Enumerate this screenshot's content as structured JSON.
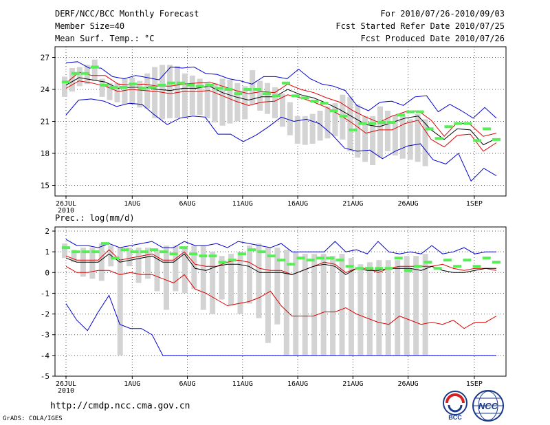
{
  "header": {
    "title": "DERF/NCC/BCC Monthly Forecast",
    "member_size": "Member Size=40",
    "variable": "Mean Surf. Temp.: °C",
    "period": "For 2010/07/26-2010/09/03",
    "started": "Fcst Started Refer Date 2010/07/25",
    "produced": "Fcst Produced Date 2010/07/26"
  },
  "footer": {
    "url": "http://cmdp.ncc.cma.gov.cn",
    "grads": "GrADS: COLA/IGES",
    "logo_bcc": "BCC",
    "logo_ncc": "NCC"
  },
  "colors": {
    "box": "#d3d3d3",
    "mean": "#55ee55",
    "median": "#000000",
    "inner": "#dd0000",
    "outer": "#0000cc",
    "grid": "#555555"
  },
  "chart_data": [
    {
      "type": "box-plume",
      "ylabel": "Mean Surf. Temp.: °C",
      "xlabel_year": "2010",
      "x_ticks": [
        "26JUL",
        "1AUG",
        "6AUG",
        "11AUG",
        "16AUG",
        "21AUG",
        "26AUG",
        "1SEP"
      ],
      "x_tick_days": [
        0,
        6,
        11,
        16,
        21,
        26,
        31,
        37
      ],
      "ylim": [
        14,
        28
      ],
      "y_ticks": [
        15,
        18,
        21,
        24,
        27
      ],
      "days": 40,
      "box_low": [
        23.3,
        23.8,
        24.3,
        24.5,
        24.8,
        23.3,
        23.0,
        22.8,
        22.6,
        22.6,
        22.3,
        22.2,
        21.3,
        21.2,
        21.3,
        21.3,
        21.3,
        21.6,
        21.6,
        21.3,
        20.9,
        20.6,
        20.8,
        21.0,
        21.2,
        22.6,
        22.0,
        21.7,
        21.3,
        20.5,
        19.7,
        18.9,
        18.8,
        18.9,
        19.2,
        19.4,
        19.6,
        19.3,
        18.2,
        17.6,
        17.2,
        16.9,
        17.6,
        18.2,
        17.8,
        17.5,
        17.4,
        17.2,
        16.8
      ],
      "box_high": [
        25.2,
        26.0,
        26.1,
        26.3,
        26.8,
        25.0,
        24.6,
        24.6,
        25.0,
        25.1,
        24.8,
        25.5,
        26.1,
        26.3,
        26.3,
        26.2,
        25.5,
        25.3,
        25.0,
        24.6,
        24.6,
        25.0,
        24.9,
        24.6,
        24.3,
        25.8,
        24.8,
        24.6,
        24.2,
        23.6,
        22.8,
        21.5,
        21.5,
        21.7,
        22.0,
        22.4,
        22.7,
        23.5,
        23.3,
        22.6,
        21.5,
        21.5,
        22.4,
        22.0,
        21.6,
        21.5,
        21.2,
        21.7,
        21.2
      ],
      "mean_dash": [
        24.7,
        25.5,
        25.5,
        26.1,
        24.4,
        24.2,
        24.2,
        24.5,
        24.1,
        24.2,
        24.4,
        24.6,
        24.6,
        24.4,
        24.3,
        24.4,
        24.1,
        24.0,
        23.6,
        24.0,
        24.0,
        23.6,
        23.4,
        24.6,
        23.4,
        23.2,
        22.9,
        22.7,
        22.0,
        21.5,
        20.2,
        20.8,
        20.8,
        20.9,
        20.9,
        21.6,
        21.9,
        21.9,
        20.3,
        19.4,
        20.5,
        20.8,
        20.8,
        19.2,
        20.3,
        19.3
      ],
      "outer_high": [
        26.5,
        26.6,
        26.0,
        26.0,
        25.2,
        25.0,
        25.3,
        25.1,
        24.9,
        26.1,
        26.0,
        26.1,
        25.5,
        25.4,
        25.0,
        24.8,
        24.5,
        25.2,
        25.2,
        25.0,
        25.9,
        25.0,
        24.5,
        24.3,
        23.9,
        22.5,
        22.0,
        22.8,
        22.9,
        22.5,
        23.3,
        23.4,
        21.9,
        22.6,
        22.0,
        21.3,
        22.3,
        21.3
      ],
      "outer_low": [
        21.6,
        23.0,
        23.1,
        22.9,
        22.4,
        22.7,
        22.6,
        21.6,
        20.7,
        21.3,
        21.5,
        21.4,
        19.8,
        19.8,
        19.1,
        19.7,
        20.5,
        21.4,
        21.0,
        21.2,
        20.8,
        19.8,
        18.5,
        18.2,
        18.3,
        17.5,
        18.2,
        18.7,
        18.9,
        17.4,
        17.0,
        18.0,
        15.4,
        16.6,
        15.9
      ],
      "inner_high": [
        24.6,
        25.6,
        25.3,
        25.3,
        24.5,
        24.4,
        24.5,
        24.3,
        24.3,
        24.5,
        24.6,
        24.7,
        24.3,
        23.9,
        23.6,
        23.8,
        23.7,
        24.5,
        24.0,
        23.7,
        23.2,
        22.8,
        22.0,
        21.4,
        20.9,
        21.5,
        21.9,
        22.0,
        21.1,
        19.6,
        20.9,
        20.7,
        19.6,
        19.9
      ],
      "inner_low": [
        24.1,
        24.8,
        24.6,
        24.3,
        23.8,
        24.0,
        23.9,
        23.8,
        23.6,
        23.8,
        23.8,
        23.9,
        23.4,
        22.9,
        22.5,
        22.8,
        22.9,
        23.5,
        23.2,
        22.8,
        22.3,
        21.6,
        20.8,
        19.9,
        20.2,
        20.2,
        20.8,
        21.1,
        19.3,
        18.6,
        19.7,
        19.8,
        18.2,
        19.0
      ],
      "median": [
        24.4,
        25.1,
        24.9,
        24.7,
        24.1,
        24.2,
        24.2,
        24.0,
        23.9,
        24.1,
        24.1,
        24.3,
        23.7,
        23.3,
        23.0,
        23.3,
        23.3,
        24.0,
        23.5,
        23.2,
        22.7,
        22.1,
        21.4,
        20.7,
        20.5,
        20.9,
        21.3,
        21.5,
        20.2,
        19.3,
        20.3,
        20.2,
        18.8,
        19.4
      ]
    },
    {
      "type": "box-plume",
      "ylabel": "Prec.: log(mm/d)",
      "xlabel_year": "2010",
      "x_ticks": [
        "26JUL",
        "1AUG",
        "6AUG",
        "11AUG",
        "16AUG",
        "21AUG",
        "26AUG",
        "1SEP"
      ],
      "x_tick_days": [
        0,
        6,
        11,
        16,
        21,
        26,
        31,
        37
      ],
      "ylim": [
        -5,
        2.2
      ],
      "y_ticks": [
        -5,
        -4,
        -3,
        -2,
        -1,
        0,
        1,
        2
      ],
      "days": 40,
      "box_low": [
        0.7,
        0.5,
        -0.2,
        -0.3,
        -0.4,
        0.3,
        -4.0,
        0.3,
        -0.5,
        -0.3,
        -0.9,
        -1.8,
        -0.9,
        -1.0,
        -0.8,
        -1.8,
        -2.0,
        -1.3,
        -1.6,
        -2.0,
        -1.5,
        -2.2,
        -3.4,
        -2.5,
        -4.0,
        -4.0,
        -4.0,
        -4.0,
        -4.0,
        -4.0,
        -4.0,
        -4.0,
        -4.0,
        -4.0,
        -4.0,
        -4.0,
        -4.0,
        -4.0,
        -4.0,
        -4.0
      ],
      "box_high": [
        1.4,
        1.1,
        1.2,
        1.2,
        1.4,
        1.3,
        1.2,
        1.2,
        1.2,
        1.2,
        1.1,
        1.3,
        1.3,
        1.2,
        1.3,
        1.3,
        1.0,
        0.8,
        0.9,
        1.0,
        1.3,
        1.4,
        1.2,
        1.2,
        1.1,
        1.0,
        0.9,
        0.9,
        0.9,
        0.8,
        0.9,
        0.7,
        0.4,
        0.5,
        0.6,
        0.6,
        0.6,
        0.8,
        0.8,
        0.9
      ],
      "mean_dash": [
        1.2,
        1.0,
        1.0,
        1.0,
        1.4,
        0.7,
        1.1,
        1.0,
        1.0,
        1.1,
        1.0,
        0.9,
        1.2,
        0.9,
        0.8,
        0.8,
        0.5,
        0.6,
        0.9,
        1.1,
        1.0,
        0.8,
        0.6,
        0.4,
        0.7,
        0.6,
        0.7,
        0.7,
        0.6,
        0.3,
        0.2,
        0.2,
        0.2,
        0.2,
        0.7,
        0.1,
        0.3,
        0.5,
        0.2,
        0.6,
        0.3,
        0.6,
        0.3,
        0.7,
        0.5
      ],
      "outer_high": [
        1.6,
        1.3,
        1.3,
        1.2,
        1.4,
        1.2,
        1.3,
        1.4,
        1.5,
        1.2,
        1.2,
        1.5,
        1.3,
        1.3,
        1.4,
        1.2,
        1.5,
        1.4,
        1.3,
        1.2,
        1.4,
        1.0,
        1.0,
        1.0,
        1.0,
        1.5,
        1.0,
        1.1,
        0.9,
        1.5,
        1.0,
        0.9,
        1.0,
        0.9,
        1.3,
        0.9,
        1.0,
        1.2,
        0.9,
        1.0,
        1.0
      ],
      "outer_low": [
        -1.5,
        -2.3,
        -2.8,
        -1.9,
        -1.1,
        -2.5,
        -2.7,
        -2.7,
        -3.0,
        -4.0,
        -4.0,
        -4.0,
        -4.0,
        -4.0,
        -4.0,
        -4.0,
        -4.0,
        -4.0,
        -4.0,
        -4.0,
        -4.0,
        -4.0,
        -4.0,
        -4.0,
        -4.0,
        -4.0,
        -4.0,
        -4.0,
        -4.0,
        -4.0,
        -4.0,
        -4.0,
        -4.0,
        -4.0,
        -4.0,
        -4.0,
        -4.0,
        -4.0,
        -4.0,
        -4.0,
        -4.0
      ],
      "inner_high": [
        0.8,
        0.6,
        0.6,
        0.6,
        1.1,
        0.6,
        0.7,
        0.8,
        0.9,
        0.6,
        0.6,
        1.0,
        0.4,
        0.3,
        0.3,
        0.5,
        0.6,
        0.5,
        0.2,
        0.1,
        0.1,
        -0.1,
        0.1,
        0.3,
        0.5,
        0.4,
        0.0,
        0.2,
        0.2,
        0.0,
        0.2,
        0.3,
        0.3,
        0.3,
        0.3,
        0.4,
        0.2,
        0.1,
        0.2,
        0.2,
        0.1
      ],
      "inner_low": [
        0.3,
        0.0,
        0.0,
        0.1,
        0.1,
        -0.1,
        0.0,
        -0.1,
        -0.1,
        -0.3,
        -0.5,
        -0.1,
        -0.8,
        -1.0,
        -1.3,
        -1.6,
        -1.5,
        -1.4,
        -1.2,
        -0.9,
        -1.6,
        -2.1,
        -2.1,
        -2.1,
        -1.9,
        -1.9,
        -1.7,
        -2.0,
        -2.2,
        -2.4,
        -2.5,
        -2.1,
        -2.3,
        -2.5,
        -2.4,
        -2.5,
        -2.3,
        -2.7,
        -2.4,
        -2.4,
        -2.1
      ],
      "median": [
        0.7,
        0.5,
        0.5,
        0.5,
        0.9,
        0.5,
        0.6,
        0.7,
        0.8,
        0.5,
        0.5,
        0.9,
        0.2,
        0.1,
        0.3,
        0.4,
        0.4,
        0.3,
        0.0,
        0.0,
        0.0,
        -0.1,
        0.1,
        0.3,
        0.4,
        0.3,
        -0.1,
        0.2,
        0.1,
        0.1,
        0.2,
        0.2,
        0.2,
        0.1,
        0.3,
        0.1,
        0.0,
        0.0,
        0.1,
        0.2,
        0.2
      ]
    }
  ]
}
